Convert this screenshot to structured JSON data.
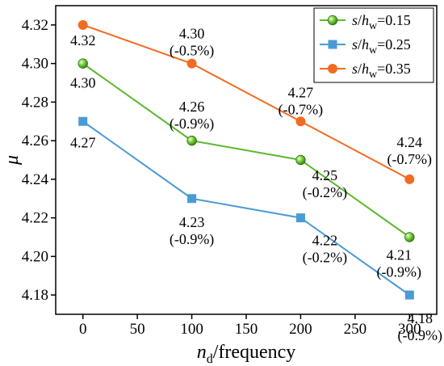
{
  "chart_data": {
    "type": "line",
    "xlabel": {
      "main": "n",
      "sub": "d",
      "rest": "/frequency"
    },
    "ylabel": "μ",
    "x": [
      0,
      100,
      200,
      300
    ],
    "xlim": [
      -25,
      325
    ],
    "ylim": [
      4.17,
      4.33
    ],
    "xticks": [
      0,
      50,
      100,
      150,
      200,
      250,
      300
    ],
    "yticks": [
      4.18,
      4.2,
      4.22,
      4.24,
      4.26,
      4.28,
      4.3,
      4.32
    ],
    "ytick_labels": [
      "4.18",
      "4.20",
      "4.22",
      "4.24",
      "4.26",
      "4.28",
      "4.30",
      "4.32"
    ],
    "legend_position": "top-right",
    "series": [
      {
        "name": "s/hw=0.15",
        "legend": {
          "s": "s",
          "slash": "/",
          "h": "h",
          "sub": "w",
          "val": "=0.15"
        },
        "color": "#5cb82e",
        "marker": "sphere",
        "values": [
          4.3,
          4.26,
          4.25,
          4.21
        ],
        "labels": [
          {
            "lines": [
              "4.30"
            ]
          },
          {
            "lines": [
              "4.26",
              "(-0.9%)"
            ]
          },
          {
            "lines": [
              "4.25",
              "(-0.2%)"
            ]
          },
          {
            "lines": [
              "4.21",
              "(-0.9%)"
            ]
          }
        ]
      },
      {
        "name": "s/hw=0.25",
        "legend": {
          "s": "s",
          "slash": "/",
          "h": "h",
          "sub": "w",
          "val": "=0.25"
        },
        "color": "#4a9bd4",
        "marker": "square",
        "values": [
          4.27,
          4.23,
          4.22,
          4.18
        ],
        "labels": [
          {
            "lines": [
              "4.27"
            ]
          },
          {
            "lines": [
              "4.23",
              "(-0.9%)"
            ]
          },
          {
            "lines": [
              "4.22",
              "(-0.2%)"
            ]
          },
          {
            "lines": [
              "4.18",
              "(-0.9%)"
            ]
          }
        ]
      },
      {
        "name": "s/hw=0.35",
        "legend": {
          "s": "s",
          "slash": "/",
          "h": "h",
          "sub": "w",
          "val": "=0.35"
        },
        "color": "#f26b21",
        "marker": "circle",
        "values": [
          4.32,
          4.3,
          4.27,
          4.24
        ],
        "labels": [
          {
            "lines": [
              "4.32"
            ]
          },
          {
            "lines": [
              "4.30",
              "(-0.5%)"
            ]
          },
          {
            "lines": [
              "4.27",
              "(-0.7%)"
            ]
          },
          {
            "lines": [
              "4.24",
              "(-0.7%)"
            ]
          }
        ]
      }
    ]
  }
}
